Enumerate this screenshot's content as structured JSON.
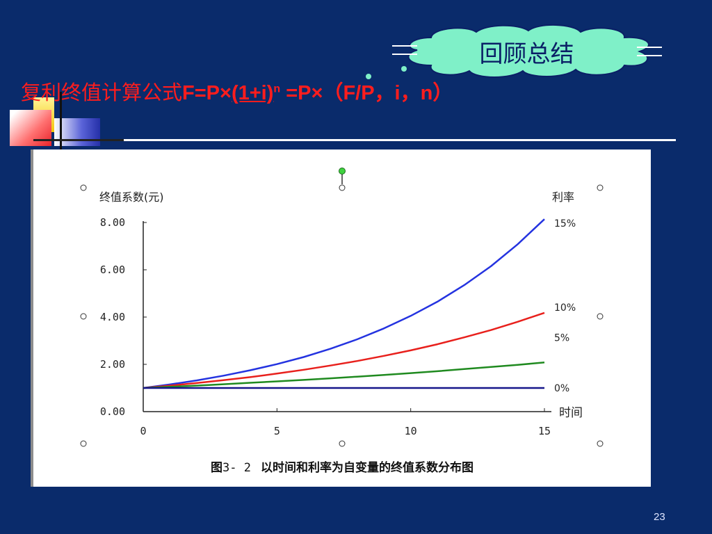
{
  "cloud_label": "回顾总结",
  "title": {
    "prefix": "复利终值计算公式",
    "formula_a": "F=P×",
    "formula_b": "(1+i)",
    "exponent": "n",
    "formula_c": " =P×（F/P，i，n）"
  },
  "caption": {
    "fig": "图",
    "num": "3- 2",
    "text": "以时间和利率为自变量的终值系数分布图"
  },
  "page_number": "23",
  "chart_data": {
    "type": "line",
    "ylabel": "终值系数(元)",
    "xlabel": "时间",
    "legend_title": "利率",
    "x_ticks": [
      "0",
      "5",
      "10",
      "15"
    ],
    "y_ticks": [
      "0.00",
      "2.00",
      "4.00",
      "6.00",
      "8.00"
    ],
    "xlim": [
      0,
      15
    ],
    "ylim": [
      0,
      8
    ],
    "x": [
      0,
      1,
      2,
      3,
      4,
      5,
      6,
      7,
      8,
      9,
      10,
      11,
      12,
      13,
      14,
      15
    ],
    "series": [
      {
        "name": "15%",
        "color": "#2433e0",
        "values": [
          1.0,
          1.15,
          1.32,
          1.52,
          1.75,
          2.01,
          2.31,
          2.66,
          3.06,
          3.52,
          4.05,
          4.65,
          5.35,
          6.15,
          7.08,
          8.14
        ]
      },
      {
        "name": "10%",
        "color": "#e8201c",
        "values": [
          1.0,
          1.1,
          1.21,
          1.33,
          1.46,
          1.61,
          1.77,
          1.95,
          2.14,
          2.36,
          2.59,
          2.85,
          3.14,
          3.45,
          3.8,
          4.18
        ]
      },
      {
        "name": "5%",
        "color": "#1f8a1f",
        "values": [
          1.0,
          1.05,
          1.1,
          1.16,
          1.22,
          1.28,
          1.34,
          1.41,
          1.48,
          1.55,
          1.63,
          1.71,
          1.8,
          1.89,
          1.98,
          2.08
        ]
      },
      {
        "name": "0%",
        "color": "#15158a",
        "values": [
          1.0,
          1.0,
          1.0,
          1.0,
          1.0,
          1.0,
          1.0,
          1.0,
          1.0,
          1.0,
          1.0,
          1.0,
          1.0,
          1.0,
          1.0,
          1.0
        ]
      }
    ]
  }
}
